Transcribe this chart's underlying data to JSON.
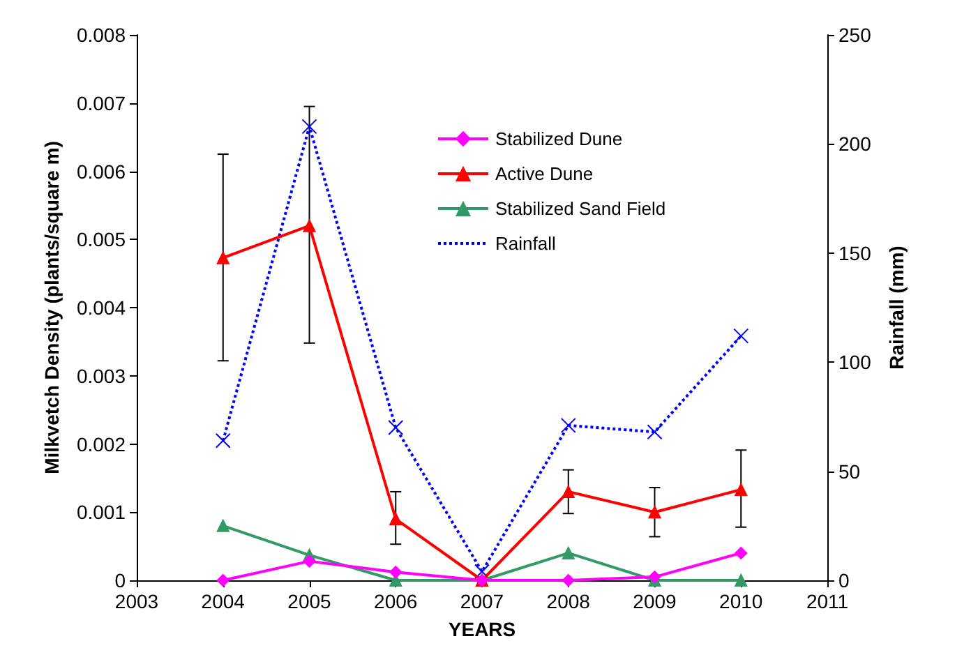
{
  "chart_data": {
    "type": "line",
    "xlabel": "YEARS",
    "ylabel": "Milkvetch Density (plants/square m)",
    "y2label": "Rainfall (mm)",
    "x": [
      2004,
      2005,
      2006,
      2007,
      2008,
      2009,
      2010
    ],
    "series": [
      {
        "name": "Stabilized Dune",
        "color": "#ff00ff",
        "marker": "diamond",
        "values": [
          0,
          0.00028,
          0.00012,
          0,
          0,
          5e-05,
          0.0004
        ]
      },
      {
        "name": "Active Dune",
        "color": "#ff0000",
        "marker": "triangle",
        "values": [
          0.00473,
          0.0052,
          0.0009,
          0,
          0.0013,
          0.001,
          0.00133
        ],
        "errors": [
          [
            0.00322,
            0.00625
          ],
          [
            0.00348,
            0.00695
          ],
          [
            0.00053,
            0.0013
          ],
          null,
          [
            0.00098,
            0.00162
          ],
          [
            0.00064,
            0.00136
          ],
          [
            0.00078,
            0.00191
          ]
        ]
      },
      {
        "name": "Stabilized Sand Field",
        "color": "#339966",
        "marker": "triangle",
        "values": [
          0.0008,
          0.00037,
          0,
          0,
          0.0004,
          0,
          0
        ]
      },
      {
        "name": "Rainfall",
        "color": "#0000ff",
        "marker": "cross",
        "line_style": "dotted",
        "axis": "y2",
        "values": [
          64,
          208,
          70,
          4,
          71,
          68,
          112
        ]
      }
    ],
    "xlim": [
      2003,
      2011
    ],
    "xticks": [
      2003,
      2004,
      2005,
      2006,
      2007,
      2008,
      2009,
      2010,
      2011
    ],
    "ylim": [
      0,
      0.008
    ],
    "yticks": [
      0,
      0.001,
      0.002,
      0.003,
      0.004,
      0.005,
      0.006,
      0.007,
      0.008
    ],
    "y2lim": [
      0,
      250
    ],
    "y2ticks": [
      0,
      50,
      100,
      150,
      200,
      250
    ],
    "grid": false,
    "legend": "top"
  }
}
